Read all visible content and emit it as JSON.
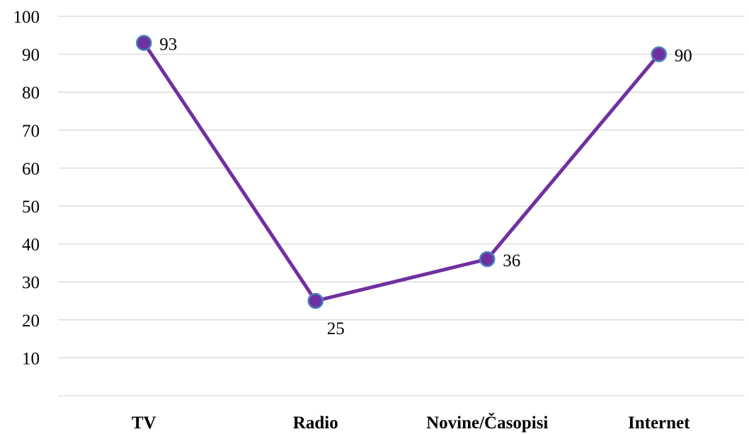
{
  "chart_data": {
    "type": "line",
    "title": "",
    "xlabel": "",
    "ylabel": "",
    "categories": [
      "TV",
      "Radio",
      "Novine/Časopisi",
      "Internet"
    ],
    "series": [
      {
        "values": [
          93,
          25,
          36,
          90
        ]
      }
    ],
    "y_tick_labels": [
      "10",
      "20",
      "30",
      "40",
      "50",
      "60",
      "70",
      "80",
      "90",
      "100"
    ],
    "ylim": [
      0,
      100
    ],
    "grid": true,
    "legend": "none",
    "colors": {
      "line": "#7030a0",
      "marker_fill": "#7030a0",
      "marker_edge": "#4a7ebb",
      "gridline": "#d9d9d9"
    }
  }
}
